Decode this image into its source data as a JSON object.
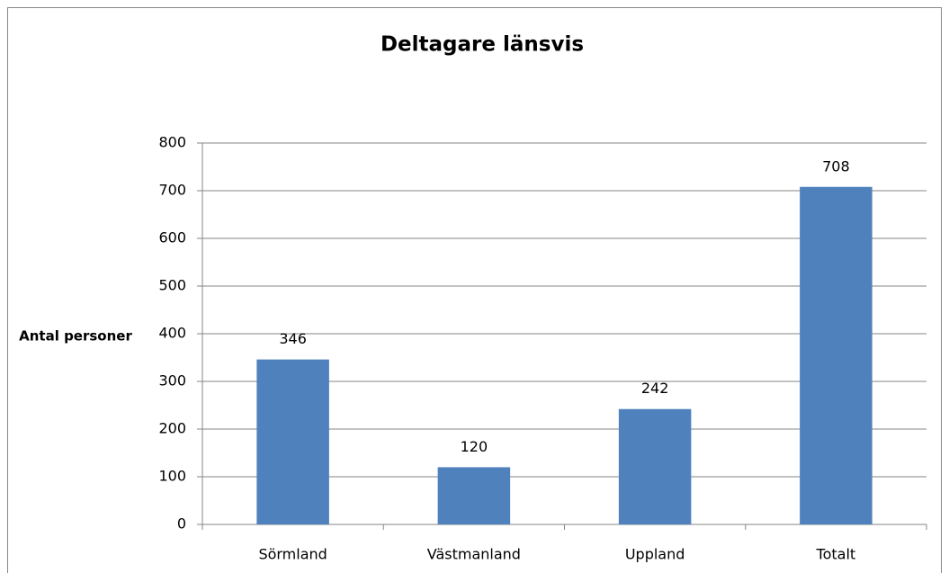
{
  "chart_data": {
    "type": "bar",
    "title": "Deltagare länsvis",
    "ylabel": "Antal personer",
    "categories": [
      "Sörmland",
      "Västmanland",
      "Uppland",
      "Totalt"
    ],
    "values": [
      346,
      120,
      242,
      708
    ],
    "color": "#4f81bd",
    "ylim": [
      0,
      800
    ],
    "yticks": [
      0,
      100,
      200,
      300,
      400,
      500,
      600,
      700,
      800
    ],
    "grid": true,
    "data_labels": true
  }
}
